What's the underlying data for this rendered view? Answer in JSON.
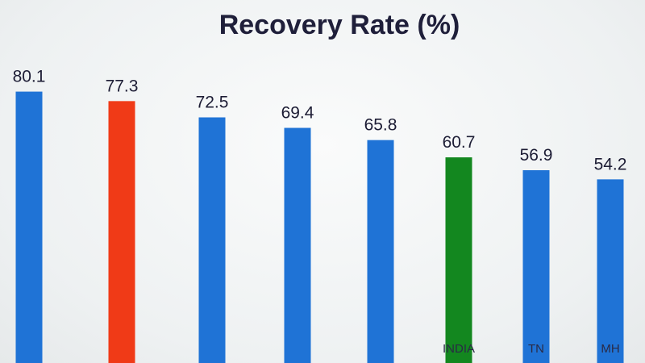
{
  "chart_data": {
    "type": "bar",
    "title": "Recovery Rate (%)",
    "categories": [
      "",
      "",
      "",
      "",
      "",
      "INDIA",
      "TN",
      "MH"
    ],
    "values": [
      80.1,
      77.3,
      72.5,
      69.4,
      65.8,
      60.7,
      56.9,
      54.2
    ],
    "value_labels": [
      "80.1",
      "77.3",
      "72.5",
      "69.4",
      "65.8",
      "60.7",
      "56.9",
      "54.2"
    ],
    "colors": [
      "#1f73d6",
      "#f03a17",
      "#1f73d6",
      "#1f73d6",
      "#1f73d6",
      "#13871f",
      "#1f73d6",
      "#1f73d6"
    ],
    "ylim": [
      0,
      100
    ],
    "xlabel": "",
    "ylabel": "",
    "grid": false,
    "legend": "none"
  }
}
